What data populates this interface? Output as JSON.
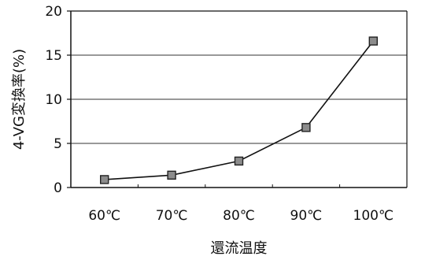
{
  "chart_data": {
    "type": "line",
    "categories": [
      "60℃",
      "70℃",
      "80℃",
      "90℃",
      "100℃"
    ],
    "series": [
      {
        "values": [
          0.9,
          1.4,
          3.0,
          6.8,
          16.6
        ]
      }
    ],
    "xlabel": "還流温度",
    "ylabel": "4-VG変換率(%)",
    "ylim": [
      0,
      20
    ],
    "yticks": [
      "0",
      "5",
      "10",
      "15",
      "20"
    ],
    "grid": true,
    "legend": "none",
    "marker": "square",
    "colors": {
      "line": "#111111",
      "marker_fill": "#8c8c8c",
      "marker_stroke": "#222222",
      "grid": "#333333",
      "axis": "#111111"
    }
  }
}
